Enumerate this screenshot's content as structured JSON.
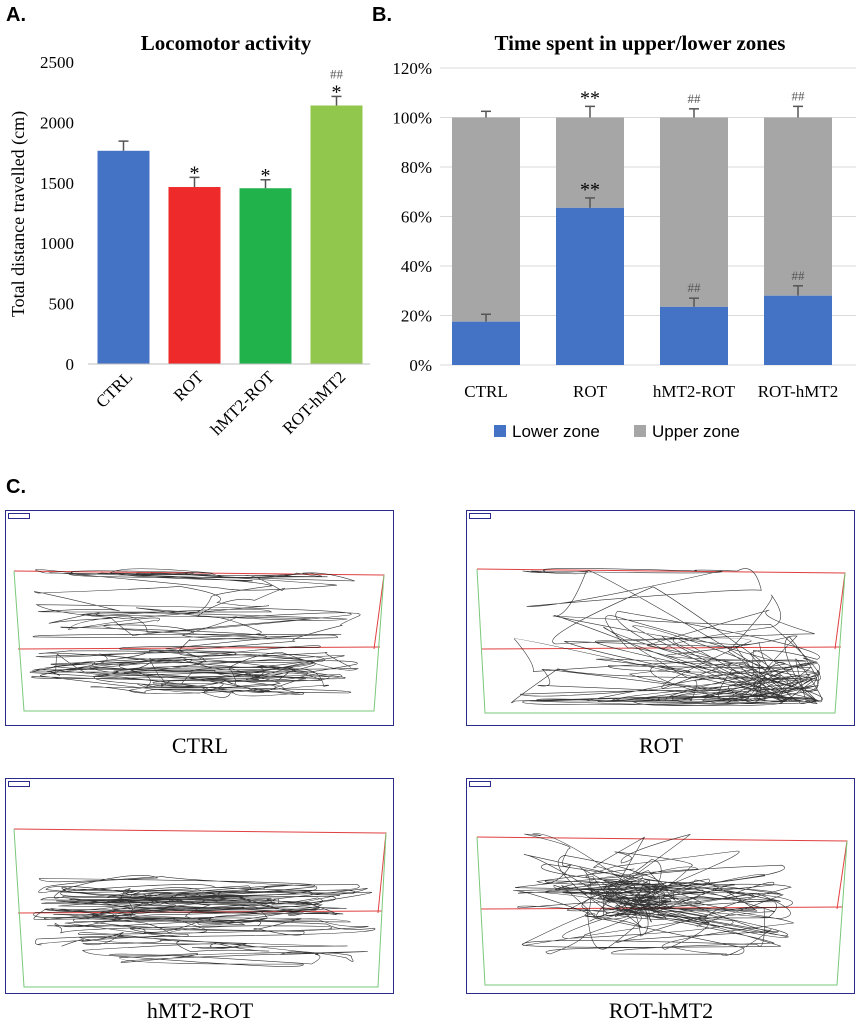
{
  "panel_labels": {
    "a": "A.",
    "b": "B.",
    "c": "C."
  },
  "colors": {
    "ctrl": "#4472c4",
    "rot": "#ee2a2a",
    "hmt2_rot": "#22b24c",
    "rot_hmt2": "#92c74d",
    "lower": "#4472c4",
    "upper": "#a6a6a6",
    "track_border": "#2b2b8c",
    "upper_zone_line": "#e04040",
    "lower_zone_line": "#7ac87a"
  },
  "chart_data": [
    {
      "type": "bar",
      "title": "Locomotor activity",
      "xlabel": "",
      "ylabel": "Total distance travelled (cm)",
      "ylim": [
        0,
        2500
      ],
      "yticks": [
        "0",
        "500",
        "1000",
        "1500",
        "2000",
        "2500"
      ],
      "categories": [
        "CTRL",
        "ROT",
        "hMT2-ROT",
        "ROT-hMT2"
      ],
      "values": [
        1765,
        1465,
        1455,
        2140
      ],
      "errors": [
        80,
        80,
        70,
        75
      ],
      "significance": [
        "",
        "*",
        "*",
        "*"
      ],
      "hash_marks": [
        "",
        "",
        "",
        "##"
      ]
    },
    {
      "type": "bar",
      "stacked": true,
      "title": "Time spent in upper/lower zones",
      "xlabel": "",
      "ylabel": "",
      "ylim": [
        0,
        120
      ],
      "yticks": [
        "0%",
        "20%",
        "40%",
        "60%",
        "80%",
        "100%",
        "120%"
      ],
      "categories": [
        "CTRL",
        "ROT",
        "hMT2-ROT",
        "ROT-hMT2"
      ],
      "series": [
        {
          "name": "Lower zone",
          "values": [
            17.5,
            63.5,
            23.5,
            28
          ],
          "errors": [
            3,
            4,
            3.5,
            4
          ]
        },
        {
          "name": "Upper zone",
          "values": [
            82.5,
            36.5,
            76.5,
            72
          ],
          "errors": [
            2.5,
            4.5,
            3.5,
            4.5
          ]
        }
      ],
      "significance_lower": [
        "",
        "**",
        "",
        ""
      ],
      "hash_lower": [
        "",
        "",
        "##",
        "##"
      ],
      "significance_upper": [
        "",
        "**",
        "",
        ""
      ],
      "hash_upper": [
        "",
        "",
        "##",
        "##"
      ]
    }
  ],
  "tracks": [
    {
      "label": "CTRL"
    },
    {
      "label": "ROT"
    },
    {
      "label": "hMT2-ROT"
    },
    {
      "label": "ROT-hMT2"
    }
  ]
}
